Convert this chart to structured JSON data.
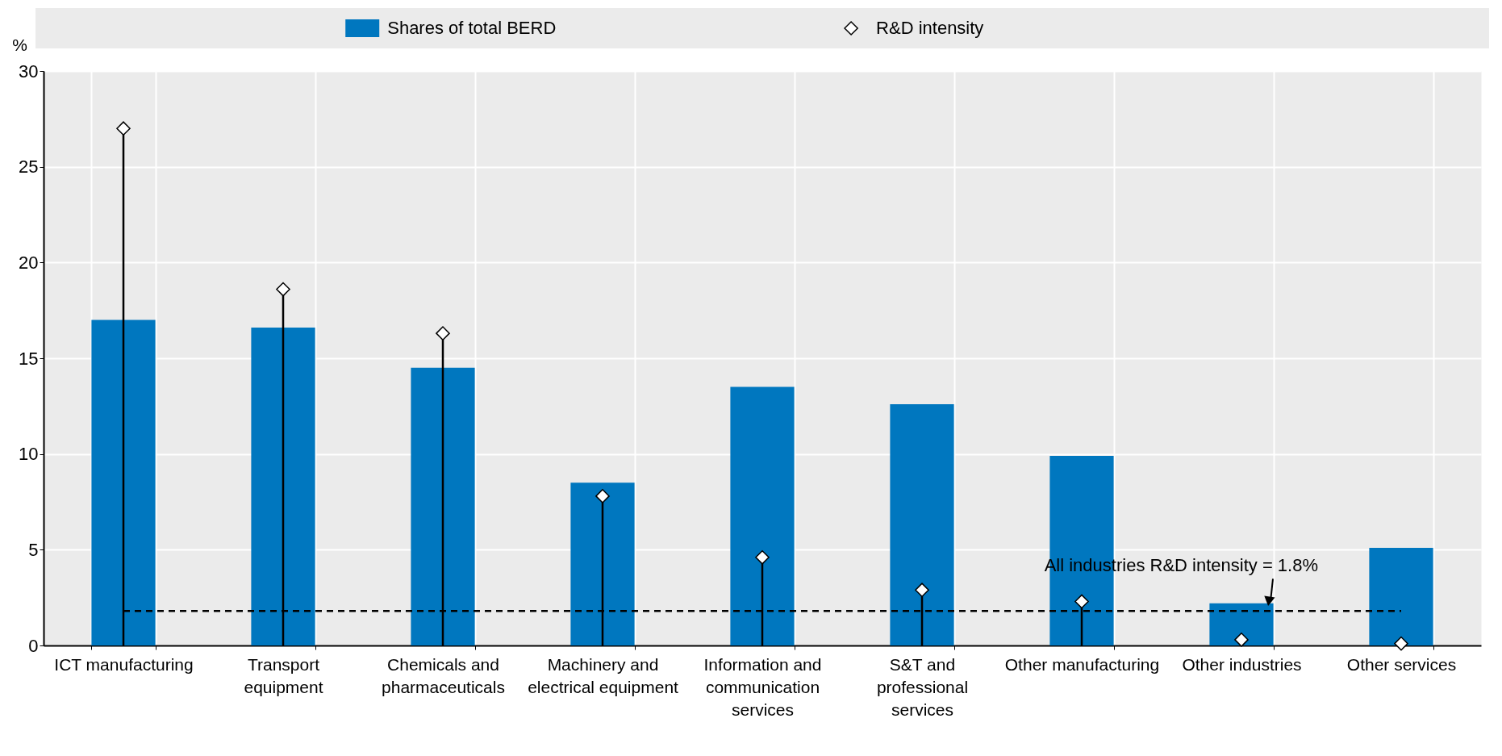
{
  "chart_data": {
    "type": "bar",
    "ylabel": "%",
    "categories": [
      "ICT manufacturing",
      "Transport\nequipment",
      "Chemicals and\npharmaceuticals",
      "Machinery and\nelectrical equipment",
      "Information and\ncommunication\nservices",
      "S&T and\nprofessional\nservices",
      "Other manufacturing",
      "Other industries",
      "Other services"
    ],
    "series": [
      {
        "name": "Shares of total BERD",
        "color": "#0077bf",
        "values": [
          17.0,
          16.6,
          14.5,
          8.5,
          13.5,
          12.6,
          9.9,
          2.2,
          5.1
        ]
      },
      {
        "name": "R&D intensity",
        "type": "lollipop",
        "marker": "diamond",
        "color": "#000000",
        "values": [
          27.0,
          18.6,
          16.3,
          7.8,
          4.6,
          2.9,
          2.3,
          0.3,
          0.1
        ]
      }
    ],
    "ylim": [
      0,
      30
    ],
    "yticks": [
      0,
      5,
      10,
      15,
      20,
      25,
      30
    ],
    "grid": true,
    "legend": "top",
    "ref_lines": [
      {
        "axis": "y",
        "value": 1.8,
        "label": "All industries R&D intensity = 1.8%",
        "line_style": "dashed",
        "color": "#000000"
      }
    ]
  }
}
